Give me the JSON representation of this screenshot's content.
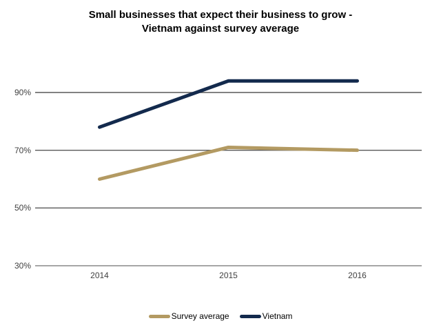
{
  "chart_data": {
    "type": "line",
    "title_line1": "Small businesses that expect their business to grow -",
    "title_line2": "Vietnam against survey average",
    "categories": [
      "2014",
      "2015",
      "2016"
    ],
    "series": [
      {
        "name": "Survey average",
        "values": [
          60,
          71,
          70
        ],
        "color": "#b39a62"
      },
      {
        "name": "Vietnam",
        "values": [
          78,
          94,
          94
        ],
        "color": "#132a4d"
      }
    ],
    "y_ticks": [
      {
        "value": 90,
        "label": "90%"
      },
      {
        "value": 70,
        "label": "70%"
      },
      {
        "value": 50,
        "label": "50%"
      },
      {
        "value": 30,
        "label": "30%"
      }
    ],
    "baseline_tick_value": 30,
    "unit": "%",
    "grid": "horizontal",
    "legend_position": "bottom",
    "colors": {
      "gridline": "#595959",
      "baseline": "#a6a6a6",
      "tick_text": "#404040",
      "title_text": "#000000"
    }
  }
}
